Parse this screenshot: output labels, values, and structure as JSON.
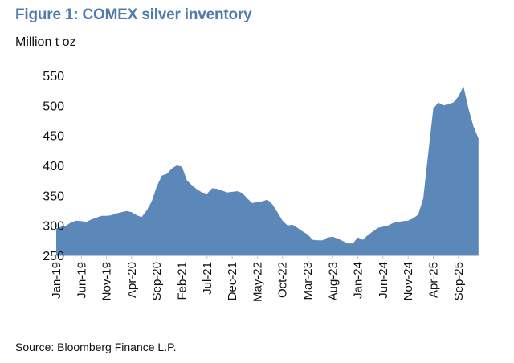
{
  "chart_data": {
    "type": "area",
    "title": "Figure 1: COMEX silver inventory",
    "ylabel": "Million t oz",
    "xlabel": "",
    "source": "Source:  Bloomberg Finance L.P.",
    "ylim": [
      250,
      550
    ],
    "yticks": [
      250,
      300,
      350,
      400,
      450,
      500,
      550
    ],
    "xticks": [
      "Jan-19",
      "Jun-19",
      "Nov-19",
      "Apr-20",
      "Sep-20",
      "Feb-21",
      "Jul-21",
      "Dec-21",
      "May-22",
      "Oct-22",
      "Mar-23",
      "Aug-23",
      "Jan-24",
      "Jun-24",
      "Nov-24",
      "Apr-25",
      "Sep-25"
    ],
    "x_start": "Jan-19",
    "x_step": "monthly",
    "grid": false,
    "color": "#5b87b9",
    "values": [
      295,
      298,
      300,
      305,
      308,
      307,
      306,
      310,
      313,
      316,
      316,
      317,
      320,
      322,
      324,
      322,
      317,
      314,
      325,
      340,
      365,
      383,
      386,
      395,
      400,
      398,
      375,
      367,
      360,
      355,
      353,
      362,
      361,
      358,
      355,
      356,
      357,
      354,
      345,
      337,
      339,
      340,
      343,
      335,
      322,
      308,
      300,
      301,
      296,
      290,
      285,
      276,
      275,
      275,
      280,
      281,
      278,
      274,
      270,
      270,
      280,
      276,
      284,
      290,
      296,
      298,
      300,
      304,
      306,
      307,
      308,
      312,
      318,
      345,
      420,
      495,
      505,
      500,
      502,
      505,
      515,
      532,
      495,
      465,
      445
    ]
  }
}
